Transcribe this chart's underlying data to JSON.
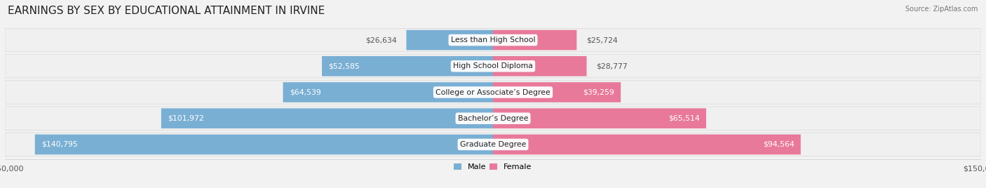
{
  "title": "EARNINGS BY SEX BY EDUCATIONAL ATTAINMENT IN IRVINE",
  "source": "Source: ZipAtlas.com",
  "categories": [
    "Less than High School",
    "High School Diploma",
    "College or Associate’s Degree",
    "Bachelor’s Degree",
    "Graduate Degree"
  ],
  "male_values": [
    26634,
    52585,
    64539,
    101972,
    140795
  ],
  "female_values": [
    25724,
    28777,
    39259,
    65514,
    94564
  ],
  "male_color": "#7aafd4",
  "female_color": "#e8799a",
  "max_value": 150000,
  "bg_color": "#f2f2f2",
  "row_bg_odd": "#ffffff",
  "row_bg_even": "#e8e8e8",
  "title_fontsize": 11,
  "label_fontsize": 7.8,
  "tick_fontsize": 8
}
